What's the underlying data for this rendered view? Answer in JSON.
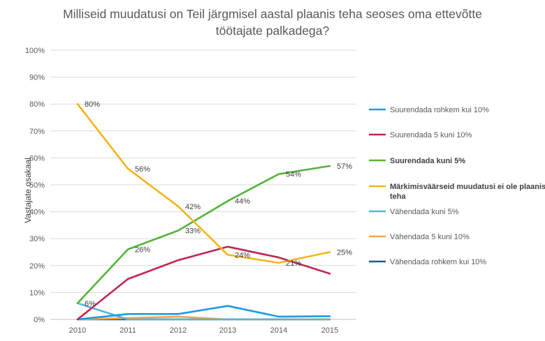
{
  "chart_data": {
    "type": "line",
    "title": "Milliseid muudatusi on Teil järgmisel aastal plaanis teha seoses oma ettevõtte töötajate palkadega?",
    "title_lines": [
      "Milliseid muudatusi on Teil järgmisel aastal plaanis teha seoses oma ettevõtte",
      "töötajate palkadega?"
    ],
    "xlabel": "",
    "ylabel": "Vastajate osakaal",
    "x": [
      "2010",
      "2011",
      "2012",
      "2013",
      "2014",
      "2015"
    ],
    "ylim": [
      0,
      100
    ],
    "yticks": [
      "0%",
      "10%",
      "20%",
      "30%",
      "40%",
      "50%",
      "60%",
      "70%",
      "80%",
      "90%",
      "100%"
    ],
    "grid": true,
    "legend_position": "right",
    "series": [
      {
        "name": "Suurendada rohkem kui 10%",
        "color": "#1f9be0",
        "bold": false,
        "values": [
          0,
          2,
          2,
          5,
          1,
          1.2
        ]
      },
      {
        "name": "Suurendada 5 kuni 10%",
        "color": "#c0264f",
        "bold": false,
        "values": [
          0,
          15,
          22,
          27,
          23,
          17
        ]
      },
      {
        "name": "Suurendada kuni 5%",
        "color": "#52b437",
        "bold": true,
        "values": [
          6,
          26,
          33,
          44,
          54,
          57
        ]
      },
      {
        "name": "Märkimisväärseid muudatusi ei ole plaanis teha",
        "legend_lines": [
          "Märkimisväärseid muudatusi ei ole plaanis",
          "teha"
        ],
        "color": "#f2b51a",
        "bold": true,
        "values": [
          80,
          56,
          42,
          24,
          21,
          25
        ]
      },
      {
        "name": "Vähendada kuni 5%",
        "color": "#58b3d8",
        "bold": false,
        "values": [
          6,
          0,
          0,
          0,
          0,
          0
        ]
      },
      {
        "name": "Vähendada 5 kuni 10%",
        "color": "#f7a649",
        "bold": false,
        "values": [
          0,
          0.5,
          1,
          0,
          0,
          0
        ]
      },
      {
        "name": "Vähendada rohkem kui 10%",
        "color": "#1a5f8c",
        "bold": false,
        "values": [
          0,
          0,
          0,
          0,
          0,
          0
        ]
      }
    ],
    "data_labels": [
      {
        "x": "2010",
        "value": 80,
        "text": "80%"
      },
      {
        "x": "2011",
        "value": 56,
        "text": "56%"
      },
      {
        "x": "2012",
        "value": 42,
        "text": "42%"
      },
      {
        "x": "2013",
        "value": 44,
        "text": "44%"
      },
      {
        "x": "2014",
        "value": 54,
        "text": "54%"
      },
      {
        "x": "2015",
        "value": 57,
        "text": "57%"
      },
      {
        "x": "2011",
        "value": 26,
        "text": "26%"
      },
      {
        "x": "2012",
        "value": 33,
        "text": "33%"
      },
      {
        "x": "2013",
        "value": 24,
        "text": "24%"
      },
      {
        "x": "2014",
        "value": 21,
        "text": "21%"
      },
      {
        "x": "2015",
        "value": 25,
        "text": "25%"
      },
      {
        "x": "2010",
        "value": 6,
        "text": "6%"
      }
    ]
  }
}
